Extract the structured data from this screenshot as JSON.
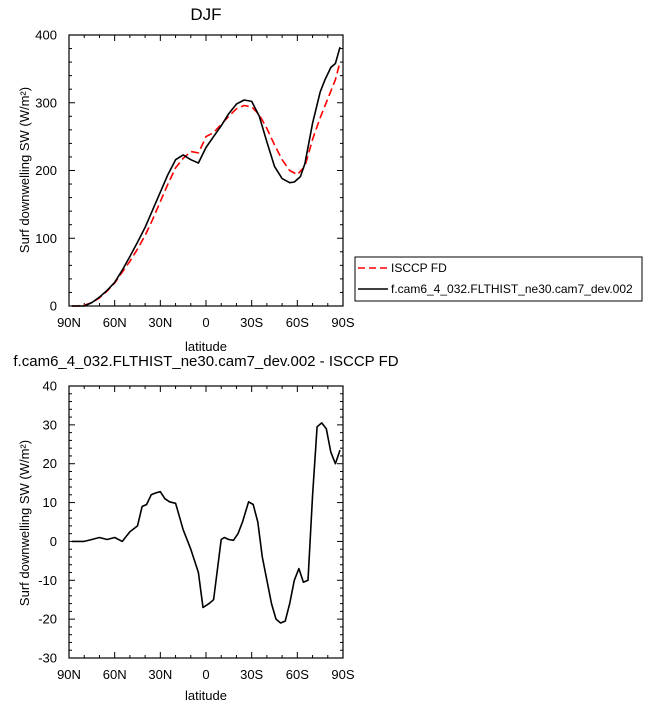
{
  "chart_data": [
    {
      "type": "line",
      "title": "DJF",
      "xlabel": "latitude",
      "ylabel": "Surf downwelling SW (W/m²)",
      "x_ticks": [
        90,
        60,
        30,
        0,
        -30,
        -60,
        -90
      ],
      "x_tick_labels": [
        "90N",
        "60N",
        "30N",
        "0",
        "30S",
        "60S",
        "90S"
      ],
      "xlim": [
        90,
        -90
      ],
      "ylim": [
        0,
        400
      ],
      "y_ticks": [
        0,
        100,
        200,
        300,
        400
      ],
      "y_tick_labels": [
        "0",
        "100",
        "200",
        "300",
        "400"
      ],
      "legend_position": "right",
      "series": [
        {
          "name": "ISCCP FD",
          "color": "#ff0000",
          "dash": "dashed",
          "x": [
            88,
            85,
            80,
            75,
            70,
            65,
            60,
            55,
            50,
            45,
            40,
            35,
            30,
            25,
            20,
            15,
            10,
            5,
            2,
            0,
            -5,
            -10,
            -15,
            -20,
            -25,
            -30,
            -35,
            -40,
            -45,
            -50,
            -55,
            -60,
            -65,
            -70,
            -75,
            -80,
            -85,
            -88
          ],
          "y": [
            0,
            0,
            1,
            5,
            12,
            22,
            34,
            50,
            66,
            84,
            104,
            128,
            154,
            180,
            204,
            218,
            228,
            226,
            240,
            250,
            256,
            268,
            280,
            291,
            296,
            294,
            282,
            262,
            238,
            216,
            200,
            194,
            206,
            246,
            278,
            306,
            334,
            360
          ]
        },
        {
          "name": "f.cam6_4_032.FLTHIST_ne30.cam7_dev.002",
          "color": "#000000",
          "dash": "solid",
          "x": [
            88,
            85,
            80,
            75,
            70,
            65,
            60,
            55,
            50,
            45,
            40,
            35,
            30,
            25,
            20,
            15,
            10,
            5,
            2,
            0,
            -5,
            -10,
            -15,
            -20,
            -25,
            -30,
            -35,
            -40,
            -45,
            -50,
            -55,
            -58,
            -62,
            -65,
            -70,
            -75,
            -78,
            -82,
            -85,
            -88
          ],
          "y": [
            0,
            0,
            0,
            5,
            13,
            23,
            35,
            53,
            73,
            94,
            116,
            142,
            168,
            194,
            216,
            223,
            216,
            211,
            225,
            234,
            250,
            266,
            284,
            298,
            304,
            302,
            280,
            242,
            206,
            188,
            182,
            183,
            191,
            210,
            270,
            316,
            333,
            352,
            358,
            382
          ]
        }
      ]
    },
    {
      "type": "line",
      "title": "f.cam6_4_032.FLTHIST_ne30.cam7_dev.002 - ISCCP FD",
      "xlabel": "latitude",
      "ylabel": "Surf downwelling SW (W/m²)",
      "x_ticks": [
        90,
        60,
        30,
        0,
        -30,
        -60,
        -90
      ],
      "x_tick_labels": [
        "90N",
        "60N",
        "30N",
        "0",
        "30S",
        "60S",
        "90S"
      ],
      "xlim": [
        90,
        -90
      ],
      "ylim": [
        -30,
        40
      ],
      "y_ticks": [
        -30,
        -20,
        -10,
        0,
        10,
        20,
        30,
        40
      ],
      "y_tick_labels": [
        "-30",
        "-20",
        "-10",
        "0",
        "10",
        "20",
        "30",
        "40"
      ],
      "series": [
        {
          "color": "#000000",
          "dash": "solid",
          "x": [
            88,
            85,
            80,
            75,
            70,
            65,
            60,
            55,
            50,
            45,
            42,
            39,
            36,
            33,
            30,
            27,
            24,
            20,
            15,
            10,
            5,
            2,
            -2,
            -5,
            -10,
            -12,
            -15,
            -18,
            -21,
            -24,
            -28,
            -31,
            -34,
            -37,
            -40,
            -43,
            -46,
            -49,
            -52,
            -55,
            -58,
            -61,
            -64,
            -67,
            -70,
            -73,
            -76,
            -79,
            -82,
            -85,
            -88
          ],
          "y": [
            0,
            0,
            0,
            0.5,
            1,
            0.5,
            1,
            0,
            2.5,
            4,
            9,
            9.5,
            12,
            12.5,
            12.8,
            11,
            10.2,
            9.8,
            3,
            -2,
            -8,
            -17,
            -16,
            -15,
            0.5,
            1,
            0.5,
            0.3,
            2,
            5,
            10.2,
            9.5,
            5,
            -4,
            -10,
            -16,
            -20,
            -21,
            -20.5,
            -16,
            -10,
            -7,
            -10.5,
            -10,
            12,
            29.5,
            30.5,
            29,
            23,
            20,
            23.5
          ]
        }
      ]
    }
  ]
}
